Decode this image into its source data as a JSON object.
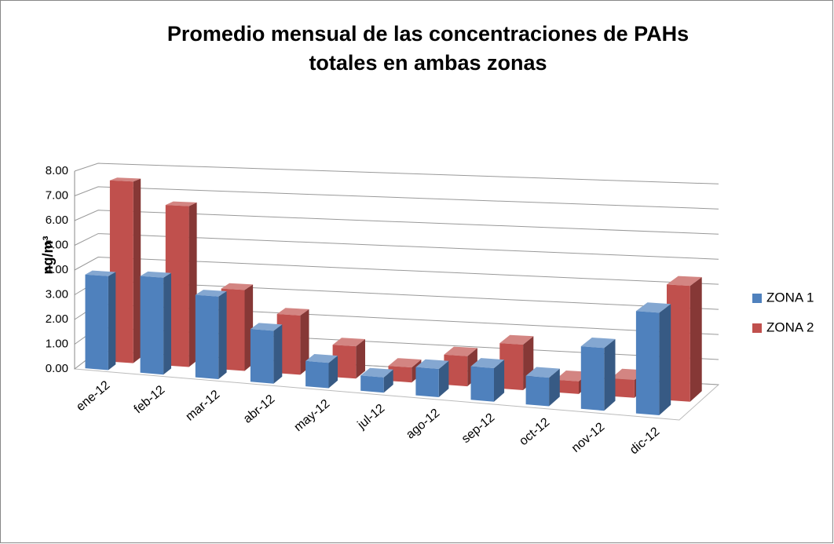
{
  "chart_data": {
    "type": "bar3d",
    "title": [
      "Promedio mensual de las concentraciones de PAHs",
      "totales en ambas zonas"
    ],
    "ylabel": "ng/m³",
    "categories": [
      "ene-12",
      "feb-12",
      "mar-12",
      "abr-12",
      "may-12",
      "jul-12",
      "ago-12",
      "sep-12",
      "oct-12",
      "nov-12",
      "dic-12"
    ],
    "series": [
      {
        "name": "ZONA 1",
        "color": "#4f81bd",
        "values": [
          3.8,
          3.9,
          3.3,
          2.1,
          1.0,
          0.6,
          1.1,
          1.3,
          1.1,
          2.4,
          3.9
        ]
      },
      {
        "name": "ZONA 2",
        "color": "#c0504d",
        "values": [
          7.5,
          6.6,
          3.3,
          2.4,
          1.3,
          0.6,
          1.2,
          1.8,
          0.5,
          0.7,
          4.5
        ]
      }
    ],
    "ylim": [
      0,
      8
    ],
    "yticks": [
      {
        "value": 0,
        "label": "0.00"
      },
      {
        "value": 1,
        "label": "1.00"
      },
      {
        "value": 2,
        "label": "2.00"
      },
      {
        "value": 3,
        "label": "3.00"
      },
      {
        "value": 4,
        "label": "4.00"
      },
      {
        "value": 5,
        "label": "5.00"
      },
      {
        "value": 6,
        "label": "6.00"
      },
      {
        "value": 7,
        "label": "7.00"
      },
      {
        "value": 8,
        "label": "8.00"
      }
    ],
    "grid": true,
    "legend": "right"
  }
}
